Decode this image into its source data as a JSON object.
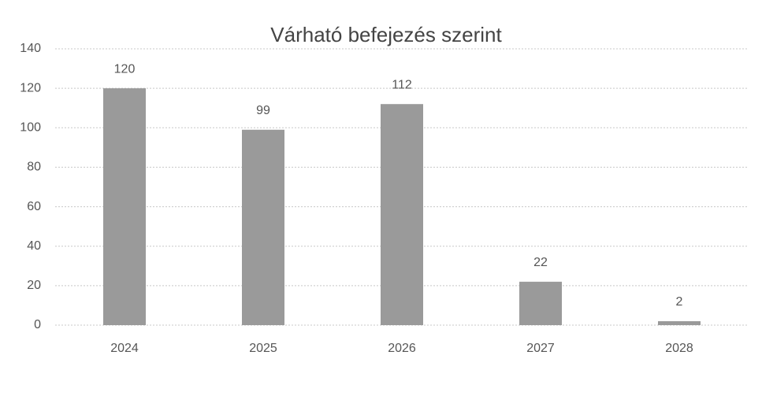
{
  "chart_data": {
    "type": "bar",
    "title": "Várható befejezés szerint",
    "categories": [
      "2024",
      "2025",
      "2026",
      "2027",
      "2028"
    ],
    "values": [
      120,
      99,
      112,
      22,
      2
    ],
    "color": "#9a9a9a",
    "ylim": [
      0,
      140
    ],
    "yticks": [
      0,
      20,
      40,
      60,
      80,
      100,
      120,
      140
    ],
    "grid": true
  }
}
